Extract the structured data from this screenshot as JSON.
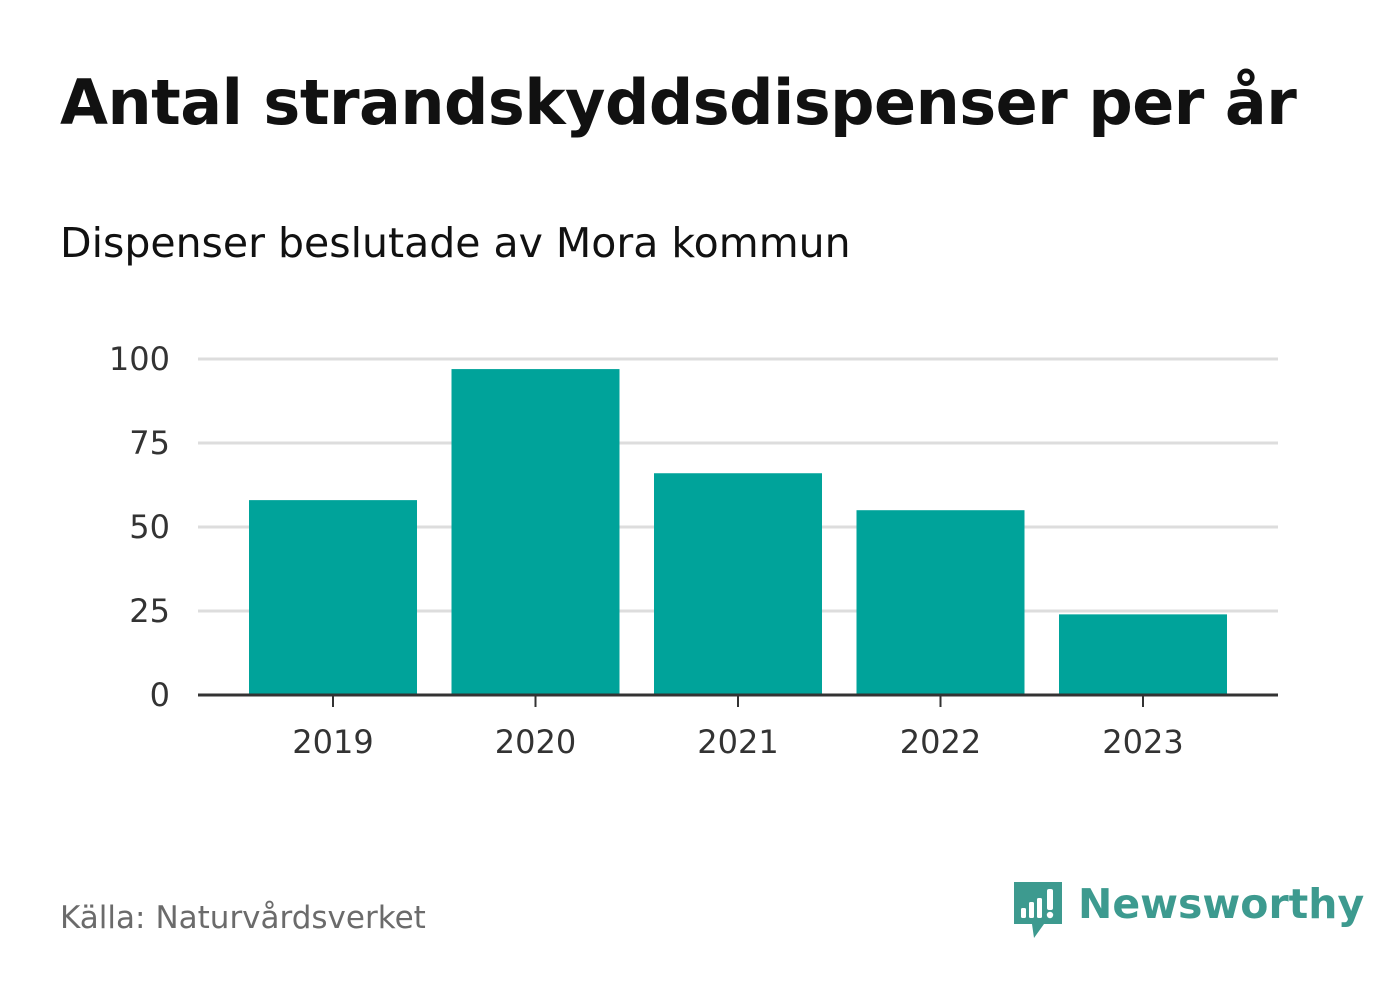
{
  "header": {
    "title": "Antal strandskyddsdispenser per år",
    "subtitle": "Dispenser beslutade av Mora kommun"
  },
  "footer": {
    "source_label": "Källa:",
    "source_name": "Naturvårdsverket",
    "brand_name": "Newsworthy"
  },
  "colors": {
    "bar": "#00a39a",
    "grid": "#dddddd",
    "axis": "#333333",
    "brand": "#3d9a8f"
  },
  "icons": {
    "brand_logo": "newsworthy-logo-icon"
  },
  "chart_data": {
    "type": "bar",
    "title": "Antal strandskyddsdispenser per år",
    "subtitle": "Dispenser beslutade av Mora kommun",
    "categories": [
      "2019",
      "2020",
      "2021",
      "2022",
      "2023"
    ],
    "values": [
      58,
      97,
      66,
      55,
      24
    ],
    "xlabel": "",
    "ylabel": "",
    "ylim": [
      0,
      100
    ],
    "yticks": [
      0,
      25,
      50,
      75,
      100
    ],
    "grid": true,
    "legend": "none"
  }
}
